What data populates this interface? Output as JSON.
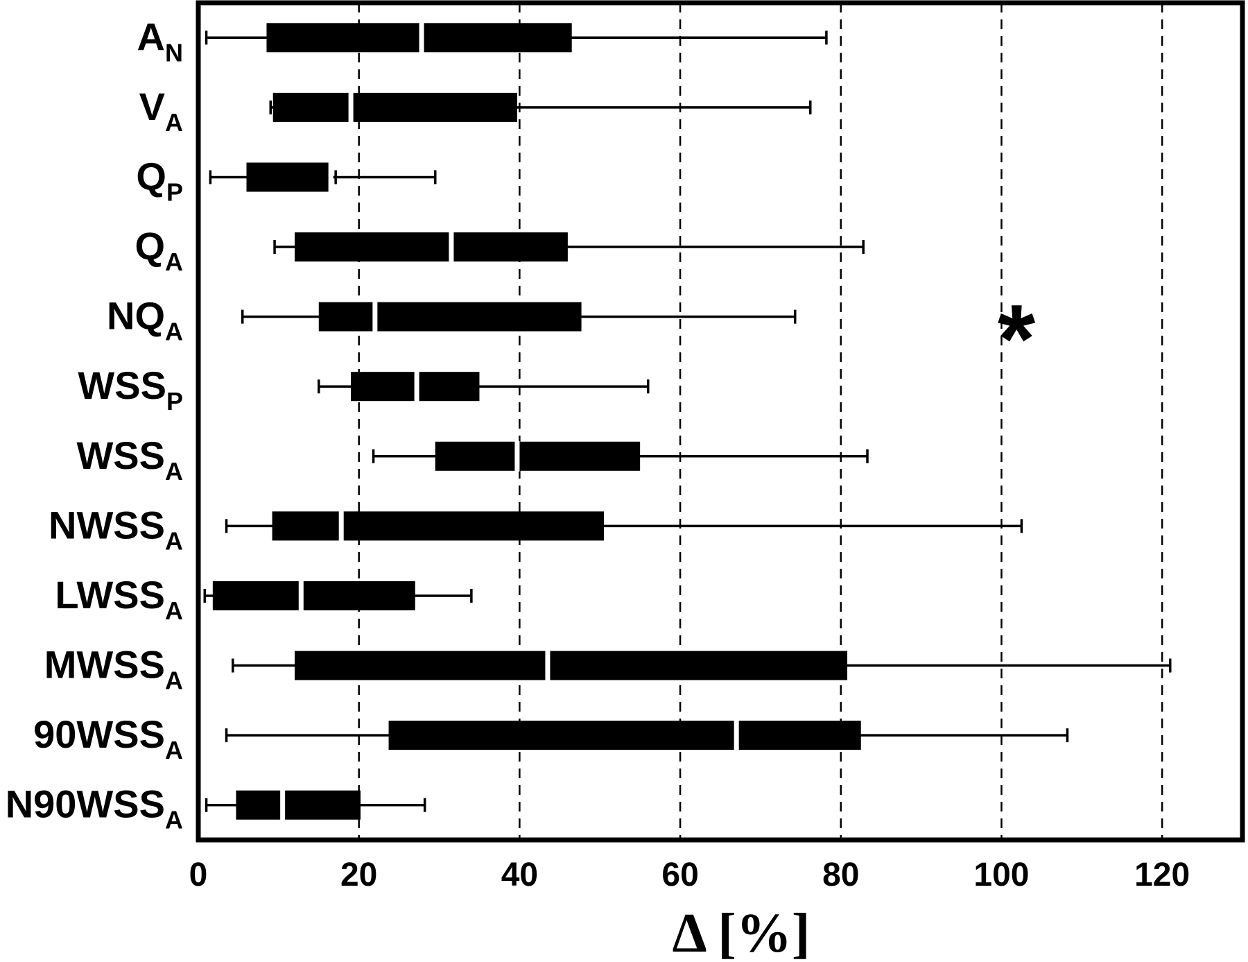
{
  "chart_data": {
    "type": "boxplot",
    "orientation": "horizontal",
    "xlabel": "Δ [%]",
    "xlim": [
      0,
      130
    ],
    "xticks": [
      0,
      20,
      40,
      60,
      80,
      100,
      120
    ],
    "grid": "vertical dashed",
    "annotation": {
      "text": "*",
      "x": 101,
      "row": "NQA"
    },
    "categories": [
      {
        "id": "AN",
        "base": "A",
        "sub": "N",
        "whisker_low": 1.0,
        "q1": 8.5,
        "median": 27.8,
        "q3": 46.5,
        "whisker_high": 78.2
      },
      {
        "id": "VA",
        "base": "V",
        "sub": "A",
        "whisker_low": 9.0,
        "q1": 9.3,
        "median": 19.0,
        "q3": 39.7,
        "whisker_high": 76.2
      },
      {
        "id": "QP",
        "base": "Q",
        "sub": "P",
        "whisker_low": 1.5,
        "q1": 6.0,
        "median": 16.5,
        "q3": 16.5,
        "whisker_high": 29.5
      },
      {
        "id": "QA",
        "base": "Q",
        "sub": "A",
        "whisker_low": 9.5,
        "q1": 12.0,
        "median": 31.5,
        "q3": 46.0,
        "whisker_high": 82.8
      },
      {
        "id": "NQA",
        "base": "NQ",
        "sub": "A",
        "whisker_low": 5.5,
        "q1": 15.0,
        "median": 22.0,
        "q3": 47.7,
        "whisker_high": 74.3
      },
      {
        "id": "WSSP",
        "base": "WSS",
        "sub": "P",
        "whisker_low": 15.0,
        "q1": 19.0,
        "median": 27.2,
        "q3": 35.0,
        "whisker_high": 56.0
      },
      {
        "id": "WSSA",
        "base": "WSS",
        "sub": "A",
        "whisker_low": 21.8,
        "q1": 29.5,
        "median": 39.7,
        "q3": 55.0,
        "whisker_high": 83.3
      },
      {
        "id": "NWSSA",
        "base": "NWSS",
        "sub": "A",
        "whisker_low": 3.5,
        "q1": 9.2,
        "median": 17.8,
        "q3": 50.5,
        "whisker_high": 102.5
      },
      {
        "id": "LWSSA",
        "base": "LWSS",
        "sub": "A",
        "whisker_low": 0.8,
        "q1": 1.8,
        "median": 12.8,
        "q3": 27.0,
        "whisker_high": 34.0
      },
      {
        "id": "MWSSA",
        "base": "MWSS",
        "sub": "A",
        "whisker_low": 4.3,
        "q1": 12.0,
        "median": 43.5,
        "q3": 80.8,
        "whisker_high": 121.0
      },
      {
        "id": "90WSSA",
        "base": "90WSS",
        "sub": "A",
        "whisker_low": 3.5,
        "q1": 23.7,
        "median": 67.0,
        "q3": 82.5,
        "whisker_high": 108.2
      },
      {
        "id": "N90WSSA",
        "base": "N90WSS",
        "sub": "A",
        "whisker_low": 1.0,
        "q1": 4.7,
        "median": 10.5,
        "q3": 20.2,
        "whisker_high": 28.2
      }
    ]
  }
}
